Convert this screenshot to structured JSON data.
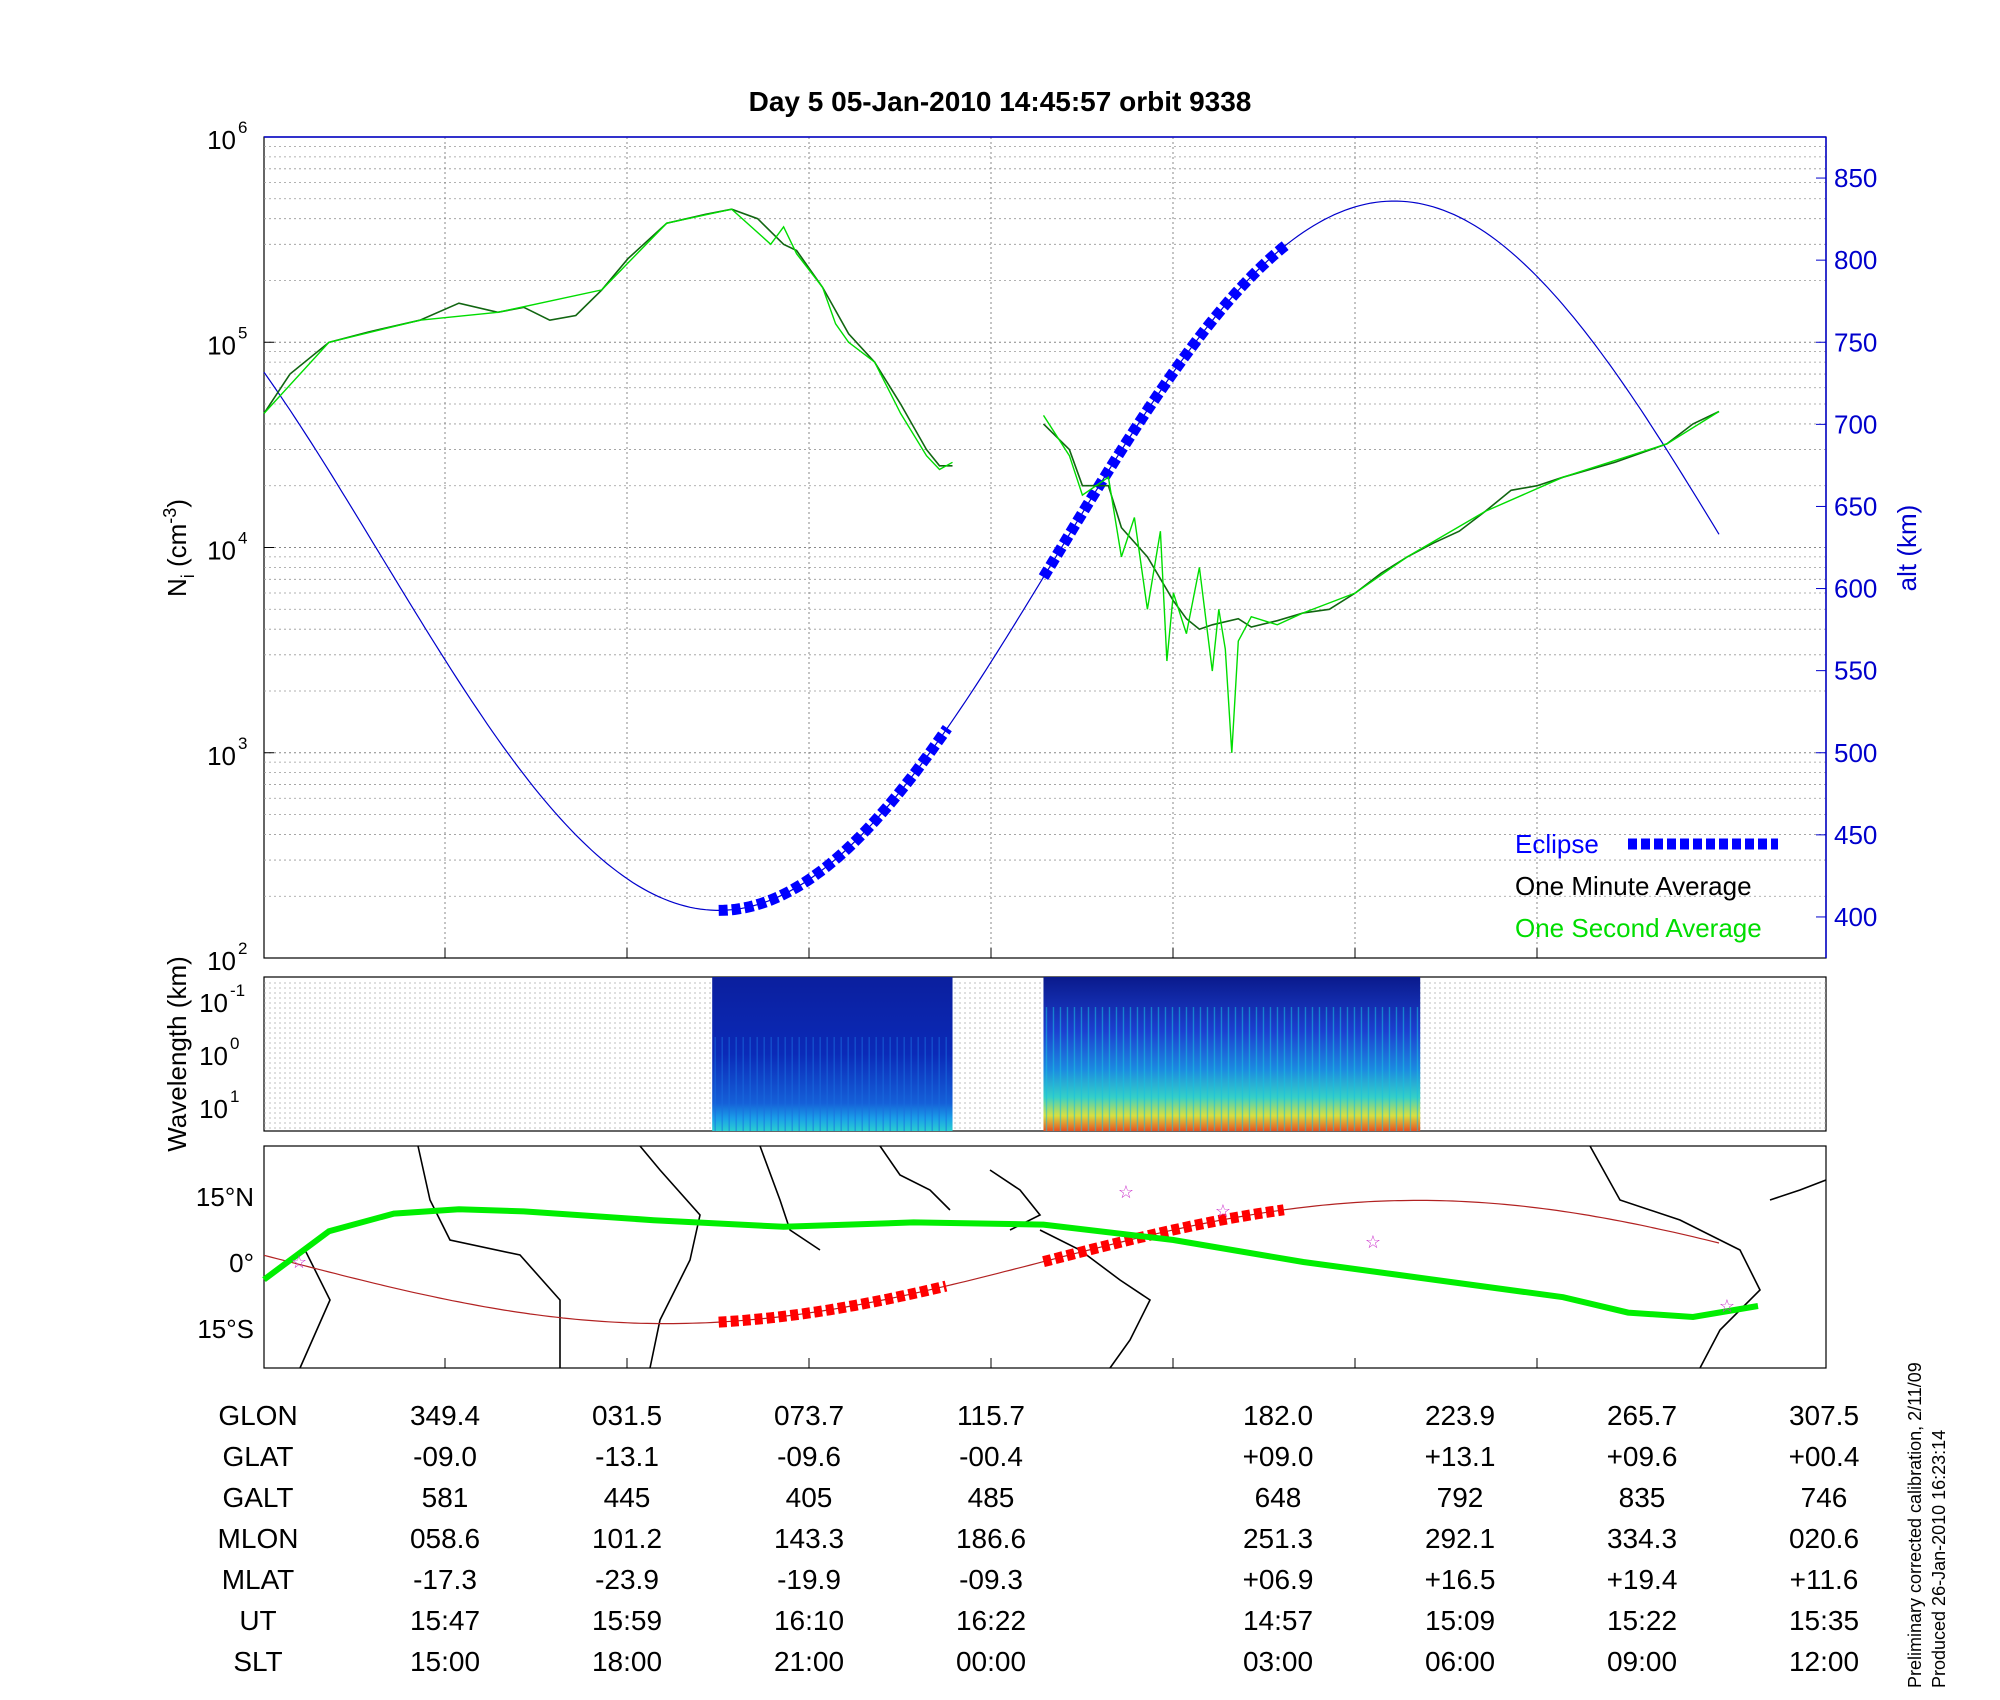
{
  "title": "Day 5  05-Jan-2010 14:45:57   orbit 9338",
  "notes": [
    "Preliminary corrected calibration, 2/11/09",
    "Produced 26-Jan-2010 16:23:14"
  ],
  "colors": {
    "eclipse": "#0000ff",
    "minute": "#000000",
    "second": "#00dd00",
    "altitude": "#0000cc",
    "track": "#00ee00",
    "eclipse_track": "#ff0000",
    "foot_track": "#b22222",
    "star": "#cc33cc"
  },
  "chart_data": [
    {
      "type": "line",
      "ylabel": "N_i (cm^-3)",
      "ylabel_base": "N",
      "ylabel_sub": "i",
      "ylabel_unit": "(cm",
      "ylabel_sup": "-3",
      "ylabel_close": ")",
      "yscale": "log",
      "ylim": [
        100,
        1000000
      ],
      "yticks": [
        {
          "base": "10",
          "exp": "2"
        },
        {
          "base": "10",
          "exp": "3"
        },
        {
          "base": "10",
          "exp": "4"
        },
        {
          "base": "10",
          "exp": "5"
        },
        {
          "base": "10",
          "exp": "6"
        }
      ],
      "y2label": "alt (km)",
      "y2lim": [
        375,
        875
      ],
      "y2ticks": [
        400,
        450,
        500,
        550,
        600,
        650,
        700,
        750,
        800,
        850
      ],
      "grid": true,
      "legend_position": "bottom-right",
      "legend": [
        "Eclipse",
        "One Minute Average",
        "One Second Average"
      ],
      "series": [
        {
          "name": "One Minute Average",
          "segment": 1,
          "values": [
            [
              0,
              45000
            ],
            [
              0.02,
              70000
            ],
            [
              0.05,
              100000
            ],
            [
              0.08,
              112000
            ],
            [
              0.12,
              128000
            ],
            [
              0.15,
              155000
            ],
            [
              0.18,
              140000
            ],
            [
              0.2,
              148000
            ],
            [
              0.22,
              128000
            ],
            [
              0.24,
              135000
            ],
            [
              0.26,
              180000
            ],
            [
              0.28,
              255000
            ],
            [
              0.31,
              380000
            ],
            [
              0.34,
              420000
            ],
            [
              0.36,
              445000
            ],
            [
              0.38,
              400000
            ],
            [
              0.4,
              300000
            ],
            [
              0.41,
              280000
            ],
            [
              0.43,
              185000
            ],
            [
              0.45,
              110000
            ],
            [
              0.47,
              80000
            ],
            [
              0.49,
              50000
            ],
            [
              0.51,
              30000
            ],
            [
              0.52,
              25000
            ],
            [
              0.53,
              25000
            ]
          ]
        },
        {
          "name": "One Minute Average",
          "segment": 2,
          "values": [
            [
              0.6,
              40000
            ],
            [
              0.62,
              30000
            ],
            [
              0.63,
              20000
            ],
            [
              0.65,
              20000
            ],
            [
              0.66,
              12500
            ],
            [
              0.68,
              9000
            ],
            [
              0.7,
              5500
            ],
            [
              0.71,
              4500
            ],
            [
              0.72,
              4000
            ],
            [
              0.73,
              4200
            ],
            [
              0.75,
              4500
            ],
            [
              0.76,
              4100
            ],
            [
              0.78,
              4400
            ],
            [
              0.8,
              4800
            ],
            [
              0.82,
              5000
            ],
            [
              0.84,
              6000
            ],
            [
              0.86,
              7500
            ],
            [
              0.88,
              9000
            ],
            [
              0.9,
              10500
            ],
            [
              0.92,
              12000
            ],
            [
              0.94,
              15000
            ],
            [
              0.96,
              19000
            ],
            [
              0.98,
              20000
            ],
            [
              1.0,
              22000
            ],
            [
              1.04,
              26000
            ],
            [
              1.08,
              32000
            ],
            [
              1.1,
              40000
            ],
            [
              1.12,
              46000
            ]
          ]
        },
        {
          "name": "One Second Average",
          "segment": 1,
          "values": [
            [
              0,
              45000
            ],
            [
              0.05,
              100000
            ],
            [
              0.12,
              128000
            ],
            [
              0.18,
              140000
            ],
            [
              0.26,
              180000
            ],
            [
              0.31,
              380000
            ],
            [
              0.36,
              445000
            ],
            [
              0.39,
              300000
            ],
            [
              0.4,
              365000
            ],
            [
              0.41,
              270000
            ],
            [
              0.43,
              185000
            ],
            [
              0.44,
              123000
            ],
            [
              0.45,
              100000
            ],
            [
              0.47,
              80000
            ],
            [
              0.49,
              45000
            ],
            [
              0.51,
              28000
            ],
            [
              0.52,
              24000
            ],
            [
              0.53,
              26000
            ]
          ]
        },
        {
          "name": "One Second Average",
          "segment": 2,
          "values": [
            [
              0.6,
              44000
            ],
            [
              0.62,
              28000
            ],
            [
              0.63,
              18000
            ],
            [
              0.65,
              22000
            ],
            [
              0.66,
              9000
            ],
            [
              0.67,
              14000
            ],
            [
              0.68,
              5000
            ],
            [
              0.69,
              12000
            ],
            [
              0.695,
              2800
            ],
            [
              0.7,
              6000
            ],
            [
              0.71,
              3800
            ],
            [
              0.72,
              8000
            ],
            [
              0.73,
              2500
            ],
            [
              0.735,
              5000
            ],
            [
              0.74,
              3200
            ],
            [
              0.745,
              1000
            ],
            [
              0.75,
              3500
            ],
            [
              0.76,
              4600
            ],
            [
              0.78,
              4200
            ],
            [
              0.8,
              4800
            ],
            [
              0.84,
              6000
            ],
            [
              0.88,
              9000
            ],
            [
              0.94,
              15000
            ],
            [
              1.0,
              22000
            ],
            [
              1.08,
              32000
            ],
            [
              1.12,
              46000
            ]
          ]
        }
      ],
      "altitude": {
        "name": "alt (km)",
        "min": 404,
        "max": 836,
        "min_at": 0.35,
        "max_at": 0.87,
        "values_note": "sinusoidal orbit altitude"
      },
      "eclipse": [
        [
          0.35,
          0.53
        ],
        [
          0.6,
          0.79
        ]
      ]
    },
    {
      "type": "heatmap",
      "ylabel": "Wavelength (km)",
      "yticks": [
        {
          "base": "10",
          "exp": "-1"
        },
        {
          "base": "10",
          "exp": "0"
        },
        {
          "base": "10",
          "exp": "1"
        }
      ],
      "blocks": [
        [
          0.345,
          0.53
        ],
        [
          0.6,
          0.89
        ]
      ]
    },
    {
      "type": "scatter",
      "ylabel_ticks": [
        "15°N",
        "0°",
        "15°S"
      ],
      "ytick_values": [
        15,
        0,
        -15
      ],
      "track_note": "satellite ground track",
      "track": [
        [
          0,
          -4
        ],
        [
          0.05,
          7
        ],
        [
          0.1,
          11
        ],
        [
          0.15,
          12
        ],
        [
          0.2,
          11.5
        ],
        [
          0.3,
          9.5
        ],
        [
          0.4,
          8
        ],
        [
          0.5,
          9
        ],
        [
          0.6,
          8.5
        ],
        [
          0.7,
          5
        ],
        [
          0.8,
          0
        ],
        [
          0.9,
          -4
        ],
        [
          1.0,
          -8
        ],
        [
          1.05,
          -11.5
        ],
        [
          1.1,
          -12.5
        ],
        [
          1.15,
          -10
        ],
        [
          1.12,
          -12
        ]
      ]
    }
  ],
  "table": {
    "rows": [
      {
        "label": "GLON",
        "values": [
          "349.4",
          "031.5",
          "073.7",
          "115.7",
          "182.0",
          "223.9",
          "265.7",
          "307.5"
        ]
      },
      {
        "label": "GLAT",
        "values": [
          "-09.0",
          "-13.1",
          "-09.6",
          "-00.4",
          "+09.0",
          "+13.1",
          "+09.6",
          "+00.4"
        ]
      },
      {
        "label": "GALT",
        "values": [
          "581",
          "445",
          "405",
          "485",
          "648",
          "792",
          "835",
          "746"
        ]
      },
      {
        "label": "MLON",
        "values": [
          "058.6",
          "101.2",
          "143.3",
          "186.6",
          "251.3",
          "292.1",
          "334.3",
          "020.6"
        ]
      },
      {
        "label": "MLAT",
        "values": [
          "-17.3",
          "-23.9",
          "-19.9",
          "-09.3",
          "+06.9",
          "+16.5",
          "+19.4",
          "+11.6"
        ]
      },
      {
        "label": "UT",
        "values": [
          "15:47",
          "15:59",
          "16:10",
          "16:22",
          "14:57",
          "15:09",
          "15:22",
          "15:35"
        ]
      },
      {
        "label": "SLT",
        "values": [
          "15:00",
          "18:00",
          "21:00",
          "00:00",
          "03:00",
          "06:00",
          "09:00",
          "12:00"
        ]
      }
    ]
  }
}
